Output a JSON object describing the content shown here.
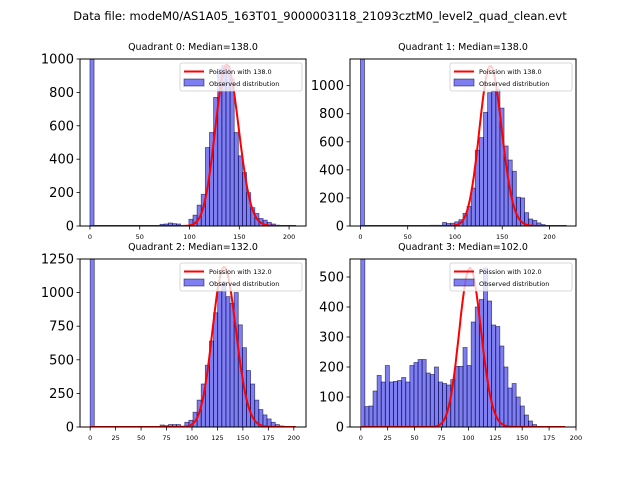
{
  "suptitle": "Data file: modeM0/AS1A05_163T01_9000003118_21093cztM0_level2_quad_clean.evt",
  "chart_data": [
    {
      "type": "bar",
      "title": "Quadrant 0: Median=138.0",
      "median": 138.0,
      "legend": [
        "Poission with 138.0",
        "Observed distribution"
      ],
      "legend_position": "top-right",
      "xlim": [
        -10,
        217
      ],
      "ylim": [
        0,
        1000
      ],
      "xticks": [
        0,
        50,
        100,
        150,
        200
      ],
      "yticks": [
        0,
        200,
        400,
        600,
        800,
        1000
      ],
      "bin_start": 0,
      "bin_width": 4.14,
      "counts": [
        1000,
        0,
        0,
        0,
        0,
        0,
        0,
        0,
        0,
        0,
        0,
        0,
        0,
        0,
        0,
        0,
        0,
        10,
        12,
        18,
        14,
        12,
        2,
        0,
        40,
        65,
        125,
        190,
        470,
        560,
        770,
        940,
        960,
        960,
        880,
        560,
        420,
        320,
        200,
        110,
        75,
        45,
        35,
        22,
        12,
        5,
        2,
        1,
        0,
        0
      ],
      "poisson_peak": 965
    },
    {
      "type": "bar",
      "title": "Quadrant 1: Median=138.0",
      "median": 138.0,
      "legend": [
        "Poission with 138.0",
        "Observed distribution"
      ],
      "legend_position": "top-right",
      "xlim": [
        -11,
        228
      ],
      "ylim": [
        0,
        1190
      ],
      "xticks": [
        0,
        50,
        100,
        150,
        200
      ],
      "yticks": [
        0,
        200,
        400,
        600,
        800,
        1000
      ],
      "bin_start": 0,
      "bin_width": 4.34,
      "counts": [
        1190,
        0,
        0,
        0,
        0,
        0,
        0,
        0,
        0,
        0,
        0,
        0,
        0,
        0,
        0,
        0,
        0,
        5,
        5,
        5,
        25,
        18,
        20,
        30,
        45,
        90,
        140,
        270,
        540,
        630,
        810,
        950,
        960,
        975,
        840,
        570,
        470,
        390,
        205,
        200,
        95,
        50,
        40,
        22,
        10,
        3,
        1,
        0,
        0,
        0
      ],
      "poisson_peak": 1140
    },
    {
      "type": "bar",
      "title": "Quadrant 2: Median=132.0",
      "median": 132.0,
      "legend": [
        "Poission with 132.0",
        "Observed distribution"
      ],
      "legend_position": "top-right",
      "xlim": [
        -10,
        212
      ],
      "ylim": [
        0,
        1250
      ],
      "xticks": [
        0,
        25,
        50,
        75,
        100,
        125,
        150,
        175,
        200
      ],
      "yticks": [
        0,
        250,
        500,
        750,
        1000,
        1250
      ],
      "bin_start": 0,
      "bin_width": 4.04,
      "counts": [
        1250,
        0,
        0,
        0,
        0,
        0,
        0,
        0,
        0,
        0,
        0,
        0,
        0,
        0,
        0,
        0,
        0,
        15,
        10,
        18,
        18,
        18,
        5,
        35,
        50,
        110,
        200,
        320,
        460,
        640,
        850,
        1010,
        1080,
        970,
        920,
        1000,
        760,
        590,
        420,
        320,
        200,
        130,
        90,
        60,
        35,
        18,
        8,
        3,
        0,
        0
      ],
      "poisson_peak": 1190
    },
    {
      "type": "bar",
      "title": "Quadrant 3: Median=102.0",
      "median": 102.0,
      "legend": [
        "Poission with 102.0",
        "Observed distribution"
      ],
      "legend_position": "top-right",
      "xlim": [
        -10,
        200
      ],
      "ylim": [
        0,
        560
      ],
      "xticks": [
        0,
        25,
        50,
        75,
        100,
        125,
        150,
        175,
        200
      ],
      "yticks": [
        0,
        100,
        200,
        300,
        400,
        500
      ],
      "bin_start": 0,
      "bin_width": 3.8,
      "counts": [
        560,
        68,
        70,
        120,
        172,
        150,
        205,
        150,
        152,
        155,
        165,
        150,
        205,
        215,
        225,
        225,
        180,
        175,
        200,
        150,
        145,
        140,
        158,
        202,
        202,
        265,
        205,
        350,
        400,
        425,
        530,
        420,
        340,
        335,
        270,
        200,
        130,
        145,
        100,
        70,
        40,
        20,
        8,
        2,
        1,
        0
      ],
      "poisson_peak": 530
    }
  ]
}
